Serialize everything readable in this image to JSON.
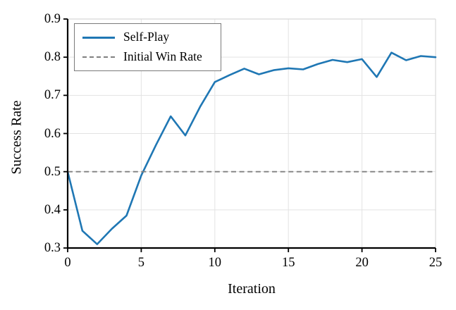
{
  "chart_data": {
    "type": "line",
    "title": "",
    "xlabel": "Iteration",
    "ylabel": "Success Rate",
    "xlim": [
      0,
      25
    ],
    "ylim": [
      0.3,
      0.9
    ],
    "xticks": [
      0,
      5,
      10,
      15,
      20,
      25
    ],
    "yticks": [
      0.3,
      0.4,
      0.5,
      0.6,
      0.7,
      0.8,
      0.9
    ],
    "grid": true,
    "legend_position": "upper left",
    "x": [
      0,
      1,
      2,
      3,
      4,
      5,
      6,
      7,
      8,
      9,
      10,
      11,
      12,
      13,
      14,
      15,
      16,
      17,
      18,
      19,
      20,
      21,
      22,
      23,
      24,
      25
    ],
    "series": [
      {
        "name": "Self-Play",
        "style": "solid",
        "color": "#1f77b4",
        "values": [
          0.5,
          0.345,
          0.31,
          0.35,
          0.385,
          0.49,
          0.57,
          0.645,
          0.595,
          0.67,
          0.735,
          0.753,
          0.77,
          0.755,
          0.766,
          0.771,
          0.768,
          0.782,
          0.793,
          0.787,
          0.795,
          0.748,
          0.812,
          0.792,
          0.803,
          0.8
        ]
      },
      {
        "name": "Initial Win Rate",
        "style": "dashed",
        "color": "#808080",
        "constant_value": 0.5
      }
    ]
  },
  "colors": {
    "accent_blue": "#1f77b4",
    "reference_gray": "#808080",
    "grid": "#e3e3e3",
    "outer_border": "#d8d8d8",
    "spine": "#000000"
  }
}
